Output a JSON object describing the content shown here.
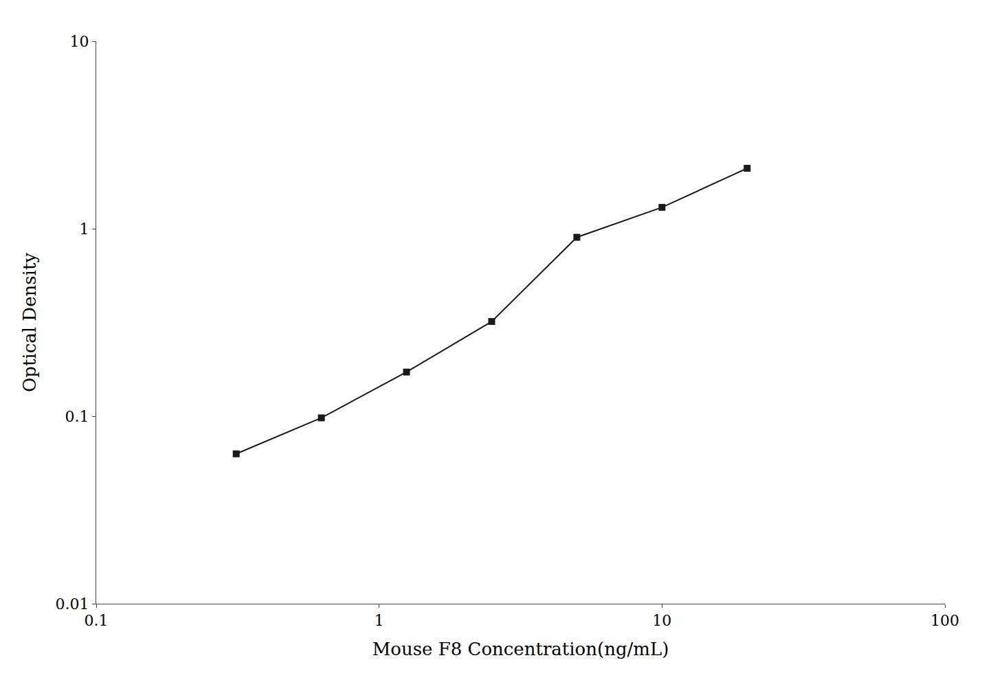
{
  "chart_data": {
    "type": "line",
    "x": [
      0.3125,
      0.625,
      1.25,
      2.5,
      5.0,
      10.0,
      20.0
    ],
    "values": [
      0.063,
      0.098,
      0.172,
      0.32,
      0.9,
      1.3,
      2.1
    ],
    "xlabel": "Mouse F8 Concentration(ng/mL)",
    "ylabel": "Optical Density",
    "xlim": [
      0.1,
      100
    ],
    "ylim": [
      0.01,
      10
    ],
    "xticks": [
      0.1,
      1,
      10,
      100
    ],
    "yticks": [
      0.01,
      0.1,
      1,
      10
    ],
    "log": true,
    "grid": false,
    "color": "#1a1a1a",
    "marker": "square"
  }
}
